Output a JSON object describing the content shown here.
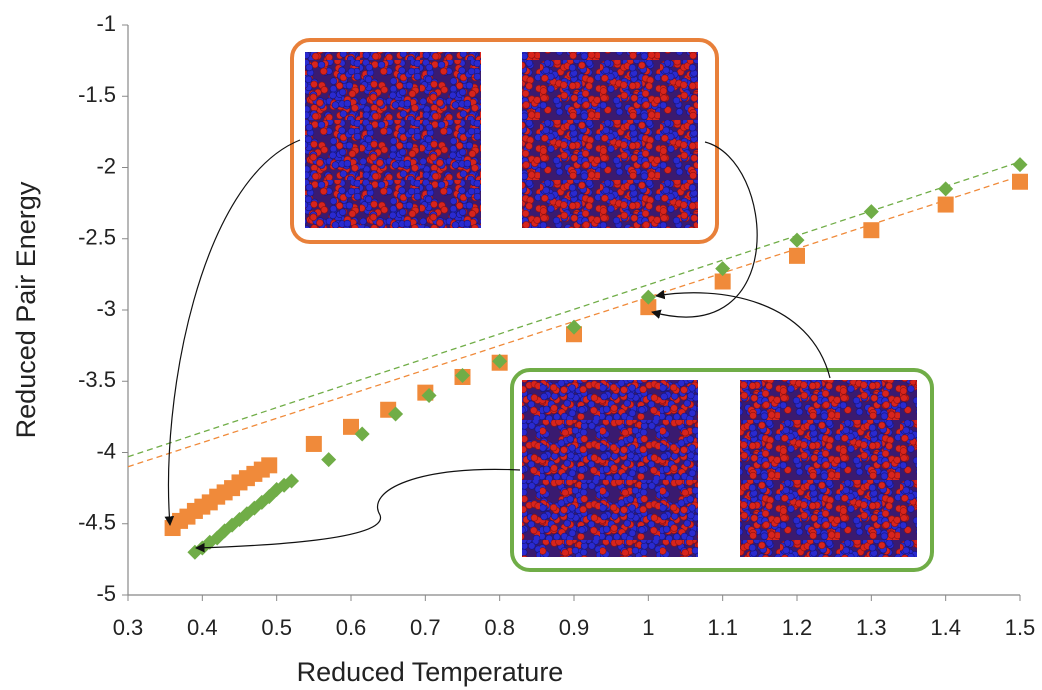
{
  "chart_data": {
    "type": "scatter",
    "x_label": "Reduced Temperature",
    "y_label": "Reduced Pair Energy",
    "xlim": [
      0.3,
      1.5
    ],
    "xticks": [
      0.3,
      0.4,
      0.5,
      0.6,
      0.7,
      0.8,
      0.9,
      1,
      1.1,
      1.2,
      1.3,
      1.4,
      1.5
    ],
    "ylim": [
      -5,
      -1
    ],
    "yticks": [
      -5,
      -4.5,
      -4,
      -3.5,
      -3,
      -2.5,
      -2,
      -1.5,
      -1
    ],
    "series": [
      {
        "color": "#f08a3a",
        "marker": "square",
        "x": [
          0.36,
          0.37,
          0.38,
          0.39,
          0.4,
          0.41,
          0.42,
          0.43,
          0.44,
          0.45,
          0.46,
          0.47,
          0.48,
          0.49,
          0.55,
          0.6,
          0.65,
          0.7,
          0.75,
          0.8,
          0.9,
          1,
          1.1,
          1.2,
          1.3,
          1.4,
          1.5
        ],
        "values": [
          -4.53,
          -4.48,
          -4.45,
          -4.41,
          -4.38,
          -4.35,
          -4.31,
          -4.28,
          -4.25,
          -4.21,
          -4.18,
          -4.15,
          -4.12,
          -4.09,
          -3.94,
          -3.82,
          -3.7,
          -3.58,
          -3.47,
          -3.37,
          -3.17,
          -2.98,
          -2.8,
          -2.62,
          -2.44,
          -2.26,
          -2.1
        ]
      },
      {
        "color": "#70ad47",
        "marker": "diamond",
        "x": [
          0.39,
          0.4,
          0.41,
          0.42,
          0.43,
          0.44,
          0.45,
          0.46,
          0.47,
          0.48,
          0.49,
          0.5,
          0.51,
          0.52,
          0.57,
          0.615,
          0.66,
          0.705,
          0.75,
          0.8,
          0.9,
          1,
          1.1,
          1.2,
          1.3,
          1.4,
          1.5
        ],
        "values": [
          -4.7,
          -4.67,
          -4.63,
          -4.6,
          -4.55,
          -4.51,
          -4.47,
          -4.43,
          -4.39,
          -4.35,
          -4.31,
          -4.26,
          -4.23,
          -4.2,
          -4.05,
          -3.87,
          -3.73,
          -3.6,
          -3.46,
          -3.36,
          -3.12,
          -2.91,
          -2.71,
          -2.51,
          -2.31,
          -2.15,
          -1.98
        ]
      }
    ],
    "trendlines": [
      {
        "color": "#f08a3a",
        "x": [
          0.3,
          1.5
        ],
        "values": [
          -4.1,
          -2.06
        ]
      },
      {
        "color": "#70ad47",
        "x": [
          0.3,
          1.5
        ],
        "values": [
          -4.03,
          -1.96
        ]
      }
    ]
  }
}
